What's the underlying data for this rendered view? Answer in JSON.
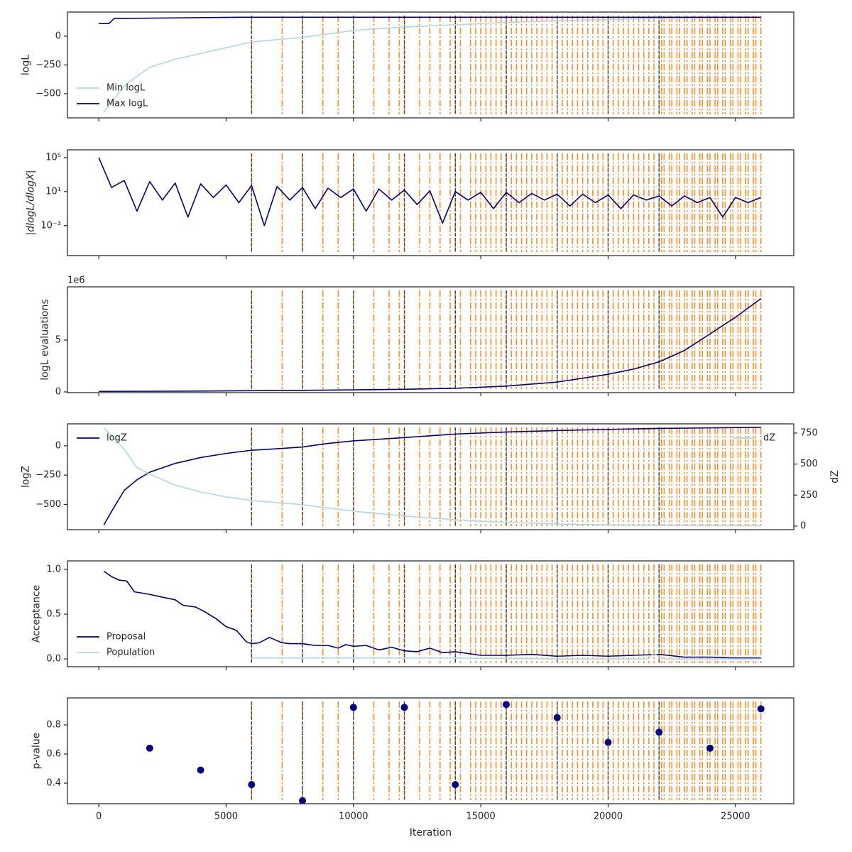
{
  "markers": {
    "orange": [
      6000,
      7200,
      8000,
      8800,
      9400,
      10000,
      10800,
      11400,
      11800,
      12000,
      12600,
      13000,
      13400,
      13800,
      14000,
      14200,
      14600,
      14800,
      15000,
      15200,
      15400,
      15600,
      15800,
      16000,
      16200,
      16400,
      16600,
      16800,
      17000,
      17200,
      17400,
      17600,
      17800,
      18000,
      18200,
      18400,
      18600,
      18800,
      19000,
      19200,
      19400,
      19600,
      19800,
      20000,
      20200,
      20400,
      20600,
      20800,
      21000,
      21200,
      21400,
      21600,
      21800,
      22000,
      22100,
      22200,
      22400,
      22500,
      22700,
      22800,
      23000,
      23100,
      23300,
      23400,
      23600,
      23700,
      23900,
      24000,
      24200,
      24300,
      24500,
      24600,
      24800,
      24900,
      25100,
      25200,
      25400,
      25500,
      25700,
      25800,
      26000
    ],
    "dark": [
      6000,
      8000,
      10000,
      12000,
      14000,
      16000,
      18000,
      20000,
      22000
    ]
  },
  "chart_data": [
    {
      "type": "line",
      "ylabel": "logL",
      "xlim": [
        -1230,
        27290
      ],
      "xticks": [
        0,
        5000,
        10000,
        15000,
        20000,
        25000
      ],
      "ylim": [
        -710,
        210
      ],
      "yticks": [
        {
          "value": -500,
          "label": "−500"
        },
        {
          "value": -250,
          "label": "−250"
        },
        0
      ],
      "legend": "lower left",
      "series": [
        {
          "name": "Min logL",
          "color": "#add8e6",
          "x": [
            200,
            1000,
            2000,
            3000,
            4000,
            6000,
            8000,
            10000,
            12000,
            14000,
            16000,
            18000,
            20000,
            22000,
            24000,
            26000
          ],
          "values": [
            -660,
            -430,
            -270,
            -200,
            -150,
            -50,
            -10,
            50,
            80,
            100,
            120,
            135,
            145,
            155,
            160,
            165
          ]
        },
        {
          "name": "Max logL",
          "color": "#000080",
          "x": [
            0,
            400,
            600,
            5500,
            26000
          ],
          "values": [
            110,
            110,
            154,
            165,
            165
          ]
        }
      ]
    },
    {
      "type": "line",
      "ylabel": "|dlogL/dlogX|",
      "log": true,
      "xlim": [
        -1230,
        27290
      ],
      "xticks": [
        0,
        5000,
        10000,
        15000,
        20000,
        25000
      ],
      "ylim": [
        3e-07,
        800000
      ],
      "yticks": [
        {
          "value": 0.001,
          "label": "10⁻³"
        },
        {
          "value": 10,
          "label": "10¹"
        },
        {
          "value": 100000,
          "label": "10⁵"
        }
      ],
      "series": [
        {
          "color": "#000080",
          "x": [
            0,
            500,
            1000,
            1500,
            2000,
            2500,
            3000,
            3500,
            4000,
            4500,
            5000,
            5500,
            6000,
            6500,
            7000,
            7500,
            8000,
            8500,
            9000,
            9500,
            10000,
            10500,
            11000,
            11500,
            12000,
            12500,
            13000,
            13500,
            14000,
            14500,
            15000,
            15500,
            16000,
            16500,
            17000,
            17500,
            18000,
            18500,
            19000,
            19500,
            20000,
            20500,
            21000,
            21500,
            22000,
            22500,
            23000,
            23500,
            24000,
            24500,
            25000,
            25500,
            26000
          ],
          "values": [
            100000,
            30,
            200,
            0.05,
            150,
            1,
            100,
            0.01,
            80,
            2,
            60,
            0.5,
            50,
            0.001,
            40,
            1,
            30,
            0.1,
            25,
            2,
            20,
            0.05,
            20,
            1,
            15,
            0.3,
            12,
            0.002,
            10,
            1,
            8,
            0.1,
            8,
            0.5,
            6,
            1,
            5,
            0.2,
            5,
            0.5,
            4,
            0.1,
            4,
            1,
            3,
            0.2,
            3,
            0.5,
            2,
            0.01,
            2,
            0.5,
            2
          ]
        }
      ]
    },
    {
      "type": "line",
      "ylabel": "logL evaluations",
      "offset_label": "1e6",
      "xlim": [
        -1230,
        27290
      ],
      "xticks": [
        0,
        5000,
        10000,
        15000,
        20000,
        25000
      ],
      "ylim": [
        -0.07,
        10.14
      ],
      "yticks": [
        0,
        5
      ],
      "series": [
        {
          "color": "#000080",
          "x": [
            0,
            4000,
            8000,
            12000,
            14000,
            16000,
            18000,
            20000,
            21000,
            22000,
            23000,
            24000,
            25000,
            26000
          ],
          "values": [
            0.05,
            0.08,
            0.15,
            0.25,
            0.35,
            0.56,
            0.95,
            1.7,
            2.2,
            2.9,
            4.0,
            5.6,
            7.2,
            9.0
          ]
        }
      ]
    },
    {
      "type": "line",
      "ylabel": "logZ",
      "y2label": "dZ",
      "xlim": [
        -1230,
        27290
      ],
      "xticks": [
        0,
        5000,
        10000,
        15000,
        20000,
        25000
      ],
      "ylim": [
        -715,
        187
      ],
      "yticks": [
        {
          "value": -500,
          "label": "−500"
        },
        {
          "value": -250,
          "label": "−250"
        },
        0
      ],
      "y2lim": [
        -29,
        824
      ],
      "y2ticks": [
        0,
        250,
        500,
        750
      ],
      "legend": "upper left",
      "legend2": "upper right",
      "series": [
        {
          "name": "logZ",
          "color": "#000080",
          "x": [
            200,
            500,
            1000,
            1500,
            2000,
            3000,
            4000,
            5000,
            6000,
            7000,
            8000,
            9000,
            10000,
            12000,
            14000,
            16000,
            18000,
            20000,
            22000,
            24000,
            26000
          ],
          "values": [
            -675,
            -560,
            -380,
            -290,
            -225,
            -150,
            -100,
            -65,
            -38,
            -25,
            -10,
            20,
            42,
            70,
            100,
            118,
            130,
            140,
            148,
            153,
            158
          ]
        },
        {
          "name": "dZ",
          "color": "#add8e6",
          "axis": "y2",
          "x": [
            200,
            1000,
            1500,
            2000,
            3000,
            4000,
            5000,
            6000,
            8000,
            10000,
            12000,
            14000,
            16000,
            18000,
            20000,
            22000,
            24000,
            26000
          ],
          "values": [
            790,
            620,
            470,
            420,
            330,
            275,
            235,
            206,
            172,
            120,
            80,
            51,
            29,
            17,
            10,
            6,
            3,
            2
          ]
        }
      ]
    },
    {
      "type": "line",
      "ylabel": "Acceptance",
      "xlim": [
        -1230,
        27290
      ],
      "xticks": [
        0,
        5000,
        10000,
        15000,
        20000,
        25000
      ],
      "ylim": [
        -0.087,
        1.095
      ],
      "yticks": [
        {
          "value": 0,
          "label": "0.0"
        },
        {
          "value": 0.5,
          "label": "0.5"
        },
        {
          "value": 1,
          "label": "1.0"
        }
      ],
      "legend": "lower left",
      "series": [
        {
          "name": "Proposal",
          "color": "#000080",
          "x": [
            200,
            500,
            800,
            1100,
            1400,
            2000,
            2500,
            3000,
            3300,
            3800,
            4200,
            4600,
            5000,
            5400,
            5800,
            6000,
            6300,
            6700,
            7200,
            7500,
            8000,
            8500,
            9000,
            9400,
            9700,
            10000,
            10500,
            11000,
            11500,
            12000,
            12500,
            13000,
            13500,
            14000,
            15000,
            16000,
            17000,
            18000,
            19000,
            20000,
            21000,
            22000,
            23000,
            24000,
            25000,
            26000
          ],
          "values": [
            0.98,
            0.92,
            0.88,
            0.87,
            0.75,
            0.72,
            0.69,
            0.66,
            0.6,
            0.58,
            0.52,
            0.45,
            0.36,
            0.32,
            0.19,
            0.17,
            0.18,
            0.24,
            0.18,
            0.17,
            0.17,
            0.15,
            0.15,
            0.12,
            0.16,
            0.14,
            0.15,
            0.1,
            0.13,
            0.09,
            0.08,
            0.12,
            0.07,
            0.08,
            0.04,
            0.04,
            0.05,
            0.03,
            0.04,
            0.03,
            0.04,
            0.05,
            0.02,
            0.02,
            0.01,
            0.01
          ]
        },
        {
          "name": "Population",
          "color": "#add8e6",
          "x": [
            6000,
            10000,
            14000,
            18000,
            21500,
            21800,
            22200,
            26000
          ],
          "values": [
            0.01,
            0.01,
            0.01,
            0,
            0,
            0.06,
            0,
            0
          ]
        }
      ]
    },
    {
      "type": "scatter",
      "ylabel": "p-value",
      "xlabel": "Iteration",
      "xlim": [
        -1230,
        27290
      ],
      "xticks": [
        0,
        5000,
        10000,
        15000,
        20000,
        25000
      ],
      "ylim": [
        0.259,
        0.985
      ],
      "yticks": [
        0.4,
        0.6,
        0.8
      ],
      "series": [
        {
          "color": "#000080",
          "x": [
            2000,
            4000,
            6000,
            8000,
            10000,
            12000,
            14000,
            16000,
            18000,
            20000,
            22000,
            24000,
            26000
          ],
          "values": [
            0.64,
            0.49,
            0.39,
            0.28,
            0.92,
            0.92,
            0.39,
            0.94,
            0.85,
            0.68,
            0.75,
            0.64,
            0.91
          ]
        }
      ]
    }
  ]
}
